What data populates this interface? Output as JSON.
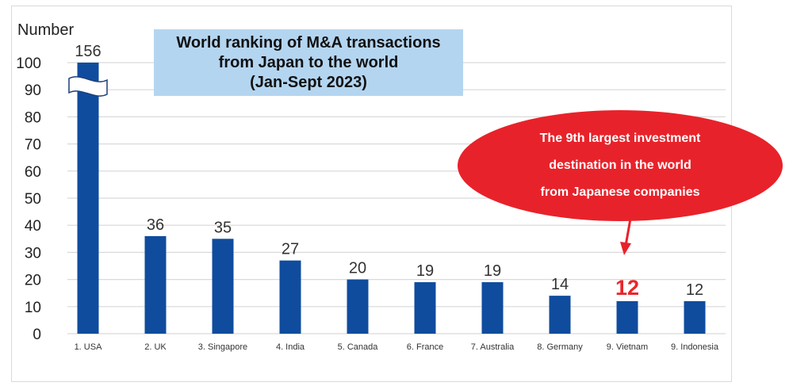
{
  "chart_data": {
    "type": "bar",
    "title": "World ranking of M&A transactions from Japan to the world (Jan-Sept 2023)",
    "title_lines": [
      "World ranking of M&A transactions",
      "from Japan to the world",
      "(Jan-Sept 2023)"
    ],
    "ylabel": "Number",
    "xlabel": "",
    "ylim": [
      0,
      100
    ],
    "y_ticks": [
      0,
      10,
      20,
      30,
      40,
      50,
      60,
      70,
      80,
      90,
      100
    ],
    "grid": true,
    "axis_break": {
      "category": "1. USA",
      "note": "bar truncated at 100, actual value 156"
    },
    "categories": [
      "1. USA",
      "2. UK",
      "3. Singapore",
      "4. India",
      "5. Canada",
      "6. France",
      "7. Australia",
      "8. Germany",
      "9. Vietnam",
      "9. Indonesia"
    ],
    "values": [
      156,
      36,
      35,
      27,
      20,
      19,
      19,
      14,
      12,
      12
    ],
    "data_labels": [
      "156",
      "36",
      "35",
      "27",
      "20",
      "19",
      "19",
      "14",
      "12",
      "12"
    ],
    "highlight": {
      "category": "9. Vietnam",
      "label_color": "#e8262a"
    },
    "annotation": {
      "lines": [
        "The 9th largest investment",
        "destination in the world",
        "from Japanese companies"
      ],
      "points_to": "9. Vietnam",
      "color": "#e8222a"
    },
    "bar_color": "#0f4c9e",
    "legend": "none"
  }
}
